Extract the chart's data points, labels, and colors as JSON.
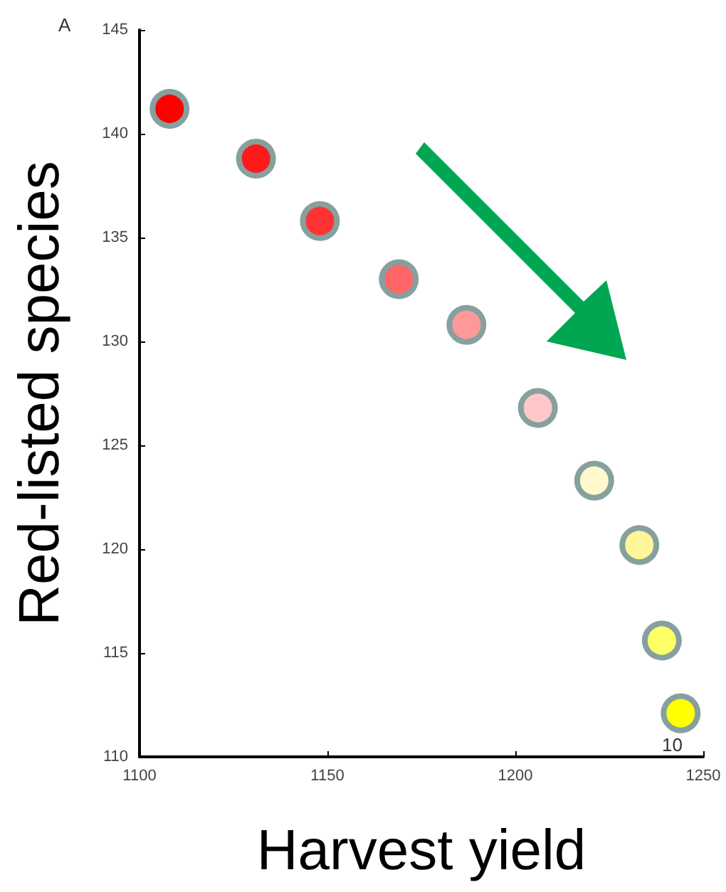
{
  "chart_data": {
    "type": "scatter",
    "xlabel": "Harvest yield",
    "ylabel": "Red-listed species",
    "annotations": [
      "A",
      "10"
    ],
    "x": [
      1108,
      1131,
      1148,
      1169,
      1187,
      1206,
      1221,
      1233,
      1239,
      1244
    ],
    "values": [
      141.2,
      138.8,
      135.8,
      133.0,
      130.8,
      126.8,
      123.3,
      120.2,
      115.6,
      112.1
    ],
    "colors": [
      "#ff0000",
      "#ff1a1a",
      "#ff3333",
      "#ff6666",
      "#ff9999",
      "#ffc8c8",
      "#fff8cc",
      "#fff599",
      "#ffff66",
      "#ffff00"
    ],
    "xlim": [
      1100,
      1250
    ],
    "xticks": [
      1100,
      1150,
      1200,
      1250
    ],
    "ylim": [
      110,
      145
    ],
    "yticks": [
      110,
      115,
      120,
      125,
      130,
      135,
      140,
      145
    ],
    "marker": "circle",
    "grid": false
  }
}
